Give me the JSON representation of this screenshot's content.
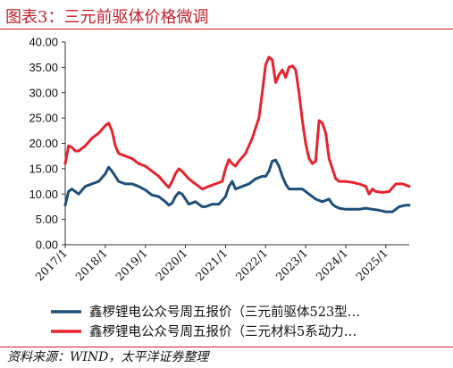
{
  "header": {
    "title": "图表3：三元前驱体价格微调"
  },
  "footer": {
    "source": "资料来源：WIND，太平洋证券整理"
  },
  "colors": {
    "title_red": "#c41e2a",
    "series_blue": "#1f4e79",
    "series_red": "#e6242e"
  },
  "chart_data": {
    "type": "line",
    "title": "图表3：三元前驱体价格微调",
    "xlabel": "",
    "ylabel": "",
    "ylim": [
      0,
      40
    ],
    "yticks": [
      "0.00",
      "5.00",
      "10.00",
      "15.00",
      "20.00",
      "25.00",
      "30.00",
      "35.00",
      "40.00"
    ],
    "xlim": [
      "2017-01",
      "2025-08"
    ],
    "xticks": [
      "2017/1",
      "2018/1",
      "2019/1",
      "2020/1",
      "2021/1",
      "2022/1",
      "2023/1",
      "2024/1",
      "2025/1"
    ],
    "grid": false,
    "legend_position": "bottom",
    "series": [
      {
        "name": "鑫椤锂电公众号周五报价（三元前驱体523型…",
        "color": "#1f4e79",
        "x": [
          "2017-01",
          "2017-02",
          "2017-03",
          "2017-05",
          "2017-07",
          "2017-09",
          "2017-11",
          "2018-01",
          "2018-02",
          "2018-03",
          "2018-04",
          "2018-05",
          "2018-07",
          "2018-09",
          "2018-11",
          "2019-01",
          "2019-03",
          "2019-05",
          "2019-07",
          "2019-08",
          "2019-09",
          "2019-10",
          "2019-11",
          "2019-12",
          "2020-01",
          "2020-02",
          "2020-04",
          "2020-06",
          "2020-07",
          "2020-09",
          "2020-11",
          "2021-01",
          "2021-02",
          "2021-03",
          "2021-04",
          "2021-06",
          "2021-08",
          "2021-10",
          "2021-12",
          "2022-01",
          "2022-02",
          "2022-03",
          "2022-04",
          "2022-05",
          "2022-06",
          "2022-07",
          "2022-08",
          "2022-10",
          "2022-12",
          "2023-01",
          "2023-02",
          "2023-04",
          "2023-06",
          "2023-08",
          "2023-09",
          "2023-10",
          "2023-11",
          "2024-01",
          "2024-03",
          "2024-05",
          "2024-07",
          "2024-09",
          "2024-11",
          "2025-01",
          "2025-03",
          "2025-05",
          "2025-07",
          "2025-08"
        ],
        "values": [
          7.8,
          10.5,
          11.0,
          10.0,
          11.5,
          12.0,
          12.5,
          14.0,
          15.3,
          14.5,
          13.5,
          12.5,
          12.0,
          12.0,
          11.5,
          10.8,
          9.8,
          9.5,
          8.5,
          7.8,
          8.2,
          9.5,
          10.3,
          10.0,
          9.0,
          8.0,
          8.5,
          7.5,
          7.5,
          8.0,
          8.0,
          9.5,
          11.5,
          12.5,
          11.0,
          11.5,
          12.0,
          13.0,
          13.5,
          13.5,
          14.5,
          16.5,
          16.7,
          15.5,
          13.5,
          12.0,
          11.0,
          11.0,
          11.0,
          10.5,
          10.0,
          9.0,
          8.5,
          9.0,
          8.0,
          7.5,
          7.2,
          7.0,
          7.0,
          7.0,
          7.2,
          7.0,
          6.8,
          6.5,
          6.5,
          7.5,
          7.8,
          7.8
        ]
      },
      {
        "name": "鑫椤锂电公众号周五报价（三元材料5系动力…",
        "color": "#e6242e",
        "x": [
          "2017-01",
          "2017-02",
          "2017-03",
          "2017-04",
          "2017-05",
          "2017-07",
          "2017-09",
          "2017-11",
          "2018-01",
          "2018-02",
          "2018-03",
          "2018-04",
          "2018-05",
          "2018-07",
          "2018-09",
          "2018-11",
          "2019-01",
          "2019-03",
          "2019-05",
          "2019-07",
          "2019-08",
          "2019-09",
          "2019-10",
          "2019-11",
          "2019-12",
          "2020-02",
          "2020-04",
          "2020-06",
          "2020-08",
          "2020-10",
          "2020-12",
          "2021-01",
          "2021-02",
          "2021-03",
          "2021-04",
          "2021-05",
          "2021-07",
          "2021-09",
          "2021-11",
          "2021-12",
          "2022-01",
          "2022-02",
          "2022-03",
          "2022-04",
          "2022-05",
          "2022-06",
          "2022-07",
          "2022-08",
          "2022-09",
          "2022-10",
          "2022-11",
          "2022-12",
          "2023-01",
          "2023-02",
          "2023-03",
          "2023-04",
          "2023-05",
          "2023-06",
          "2023-07",
          "2023-08",
          "2023-09",
          "2023-10",
          "2023-11",
          "2024-01",
          "2024-03",
          "2024-05",
          "2024-07",
          "2024-08",
          "2024-09",
          "2024-10",
          "2024-12",
          "2025-02",
          "2025-04",
          "2025-06",
          "2025-08"
        ],
        "values": [
          16.0,
          19.5,
          19.2,
          18.5,
          18.5,
          19.5,
          21.0,
          22.0,
          23.5,
          24.0,
          22.5,
          19.5,
          18.0,
          17.5,
          17.0,
          16.0,
          15.5,
          14.5,
          13.5,
          12.0,
          11.3,
          12.5,
          14.0,
          15.0,
          14.5,
          13.0,
          12.0,
          11.0,
          11.5,
          12.0,
          12.5,
          15.0,
          16.8,
          16.0,
          15.5,
          16.5,
          18.0,
          21.0,
          25.0,
          30.0,
          35.5,
          37.0,
          36.5,
          32.0,
          33.5,
          34.5,
          33.0,
          35.0,
          35.3,
          34.5,
          30.0,
          24.5,
          20.0,
          17.0,
          16.0,
          16.5,
          24.5,
          24.0,
          22.0,
          17.0,
          15.0,
          13.0,
          12.5,
          12.5,
          12.3,
          12.0,
          11.5,
          10.0,
          11.0,
          10.5,
          10.3,
          10.5,
          12.0,
          12.0,
          11.5
        ]
      }
    ]
  }
}
